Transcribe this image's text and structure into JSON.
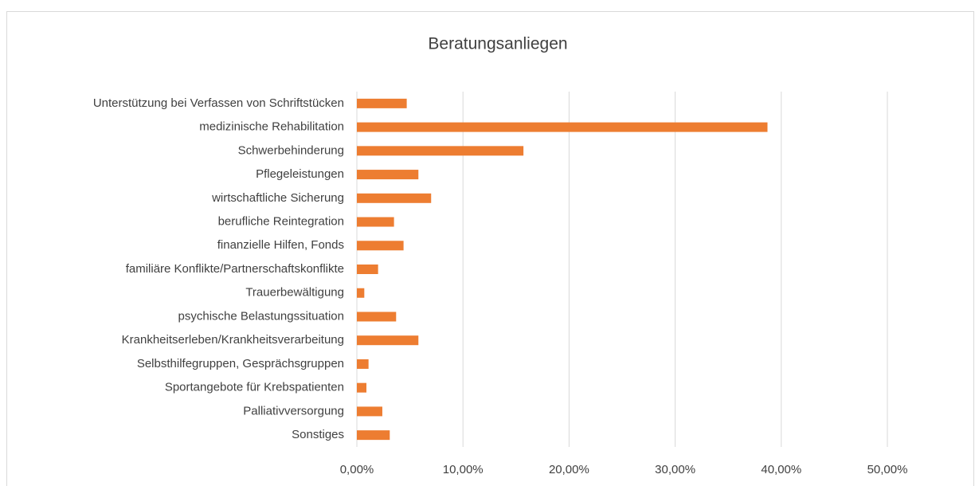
{
  "chart_data": {
    "type": "bar",
    "orientation": "horizontal",
    "title": "Beratungsanliegen",
    "categories": [
      "Unterstützung bei Verfassen von Schriftstücken",
      "medizinische Rehabilitation",
      "Schwerbehinderung",
      "Pflegeleistungen",
      "wirtschaftliche Sicherung",
      "berufliche Reintegration",
      "finanzielle Hilfen, Fonds",
      "familiäre Konflikte/Partnerschaftskonflikte",
      "Trauerbewältigung",
      "psychische Belastungssituation",
      "Krankheitserleben/Krankheitsverarbeitung",
      "Selbsthilfegruppen, Gesprächsgruppen",
      "Sportangebote für Krebspatienten",
      "Palliativversorgung",
      "Sonstiges"
    ],
    "values": [
      4.7,
      38.7,
      15.7,
      5.8,
      7.0,
      3.5,
      4.4,
      2.0,
      0.7,
      3.7,
      5.8,
      1.1,
      0.9,
      2.4,
      3.1
    ],
    "color": "#ed7d31",
    "xlim": [
      0,
      50
    ],
    "xticks": [
      {
        "value": 0,
        "label": "0,00%"
      },
      {
        "value": 10,
        "label": "10,00%"
      },
      {
        "value": 20,
        "label": "20,00%"
      },
      {
        "value": 30,
        "label": "30,00%"
      },
      {
        "value": 40,
        "label": "40,00%"
      },
      {
        "value": 50,
        "label": "50,00%"
      }
    ],
    "grid": true
  }
}
